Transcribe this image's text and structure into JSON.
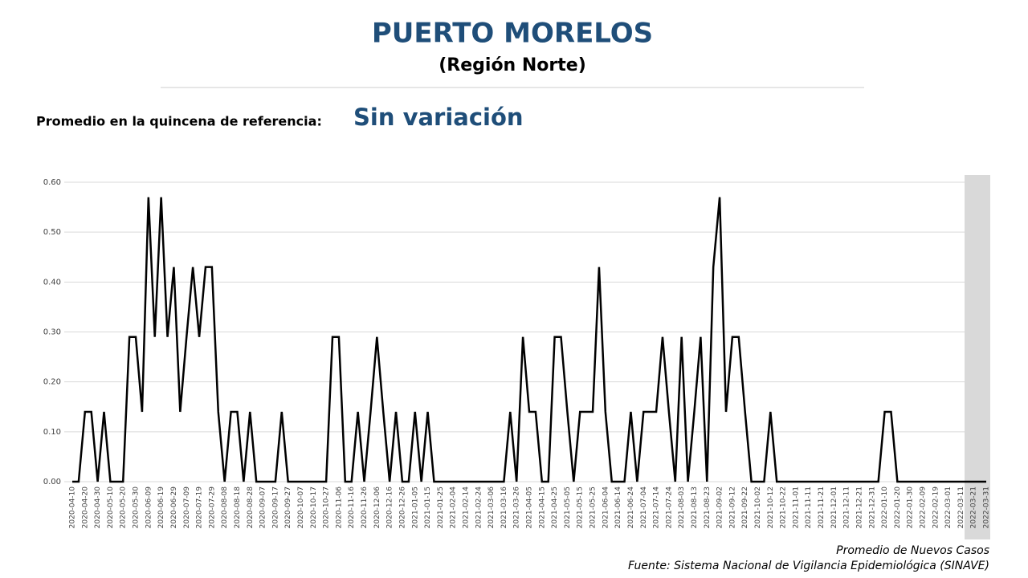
{
  "chart_data": {
    "type": "line",
    "title": "PUERTO MORELOS",
    "subtitle": "(Región Norte)",
    "reference_label": "Promedio en la quincena de referencia:",
    "reference_value": "Sin variación",
    "source": "Fuente: Sistema Nacional de Vigilancia Epidemiológica (SINAVE)",
    "ylim": [
      0,
      0.6
    ],
    "yticks": [
      {
        "value": 0,
        "label": "0.00"
      },
      {
        "value": 0.1,
        "label": "0.10"
      },
      {
        "value": 0.2,
        "label": "0.20"
      },
      {
        "value": 0.3,
        "label": "0.30"
      },
      {
        "value": 0.4,
        "label": "0.40"
      },
      {
        "value": 0.5,
        "label": "0.50"
      },
      {
        "value": 0.6,
        "label": "0.60"
      }
    ],
    "grid": true,
    "categories": [
      "2020-04-10",
      null,
      "2020-04-20",
      null,
      "2020-04-30",
      null,
      "2020-05-10",
      null,
      "2020-05-20",
      null,
      "2020-05-30",
      null,
      "2020-06-09",
      null,
      "2020-06-19",
      null,
      "2020-06-29",
      null,
      "2020-07-09",
      null,
      "2020-07-19",
      null,
      "2020-07-29",
      null,
      "2020-08-08",
      null,
      "2020-08-18",
      null,
      "2020-08-28",
      null,
      "2020-09-07",
      null,
      "2020-09-17",
      null,
      "2020-09-27",
      null,
      "2020-10-07",
      null,
      "2020-10-17",
      null,
      "2020-10-27",
      null,
      "2020-11-06",
      null,
      "2020-11-16",
      null,
      "2020-11-26",
      null,
      "2020-12-06",
      null,
      "2020-12-16",
      null,
      "2020-12-26",
      null,
      "2021-01-05",
      null,
      "2021-01-15",
      null,
      "2021-01-25",
      null,
      "2021-02-04",
      null,
      "2021-02-14",
      null,
      "2021-02-24",
      null,
      "2021-03-06",
      null,
      "2021-03-16",
      null,
      "2021-03-26",
      null,
      "2021-04-05",
      null,
      "2021-04-15",
      null,
      "2021-04-25",
      null,
      "2021-05-05",
      null,
      "2021-05-15",
      null,
      "2021-05-25",
      null,
      "2021-06-04",
      null,
      "2021-06-14",
      null,
      "2021-06-24",
      null,
      "2021-07-04",
      null,
      "2021-07-14",
      null,
      "2021-07-24",
      null,
      "2021-08-03",
      null,
      "2021-08-13",
      null,
      "2021-08-23",
      null,
      "2021-09-02",
      null,
      "2021-09-12",
      null,
      "2021-09-22",
      null,
      "2021-10-02",
      null,
      "2021-10-12",
      null,
      "2021-10-22",
      null,
      "2021-11-01",
      null,
      "2021-11-11",
      null,
      "2021-11-21",
      null,
      "2021-12-01",
      null,
      "2021-12-11",
      null,
      "2021-12-21",
      null,
      "2021-12-31",
      null,
      "2022-01-10",
      null,
      "2022-01-20",
      null,
      "2022-01-30",
      null,
      "2022-02-09",
      null,
      "2022-02-19",
      null,
      "2022-03-01",
      null,
      "2022-03-11",
      null,
      "2022-03-21",
      null,
      "2022-03-31"
    ],
    "series": [
      {
        "name": "Promedio de Nuevos Casos",
        "color": "#000000",
        "values": [
          0,
          0,
          0.14,
          0.14,
          0,
          0.14,
          0,
          0,
          0,
          0.29,
          0.29,
          0.14,
          0.57,
          0.29,
          0.57,
          0.29,
          0.43,
          0.14,
          0.29,
          0.43,
          0.29,
          0.43,
          0.43,
          0.14,
          0,
          0.14,
          0.14,
          0,
          0.14,
          0,
          0,
          0,
          0,
          0.14,
          0,
          0,
          0,
          0,
          0,
          0,
          0,
          0.29,
          0.29,
          0,
          0,
          0.14,
          0,
          0.14,
          0.29,
          0.14,
          0,
          0.14,
          0,
          0,
          0.14,
          0,
          0.14,
          0,
          0,
          0,
          0,
          0,
          0,
          0,
          0,
          0,
          0,
          0,
          0,
          0.14,
          0,
          0.29,
          0.14,
          0.14,
          0,
          0,
          0.29,
          0.29,
          0.14,
          0,
          0.14,
          0.14,
          0.14,
          0.43,
          0.14,
          0,
          0,
          0,
          0.14,
          0,
          0.14,
          0.14,
          0.14,
          0.29,
          0.14,
          0,
          0.29,
          0,
          0.14,
          0.29,
          0,
          0.43,
          0.57,
          0.14,
          0.29,
          0.29,
          0.14,
          0,
          0,
          0,
          0.14,
          0,
          0,
          0,
          0,
          0,
          0,
          0,
          0,
          0,
          0,
          0,
          0,
          0,
          0,
          0,
          0,
          0,
          0.14,
          0.14,
          0,
          0,
          0,
          0,
          0,
          0,
          0,
          0,
          0,
          0,
          0,
          0,
          0,
          0,
          0
        ]
      }
    ]
  }
}
